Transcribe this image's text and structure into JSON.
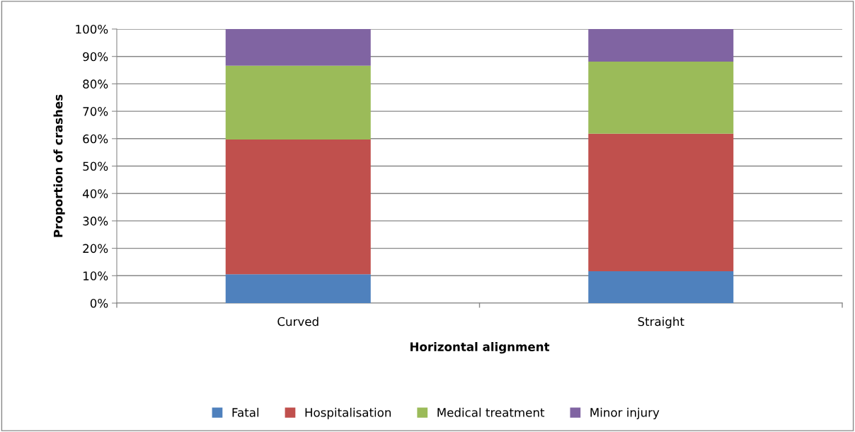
{
  "chart_data": {
    "type": "bar",
    "stacked": true,
    "xlabel": "Horizontal alignment",
    "ylabel": "Proportion of crashes",
    "categories": [
      "Curved",
      "Straight"
    ],
    "series": [
      {
        "name": "Fatal",
        "color": "#4f81bd",
        "values": [
          10.5,
          11.6
        ]
      },
      {
        "name": "Hospitalisation",
        "color": "#c0504d",
        "values": [
          49.2,
          50.2
        ]
      },
      {
        "name": "Medical treatment",
        "color": "#9bbb59",
        "values": [
          26.9,
          26.3
        ]
      },
      {
        "name": "Minor injury",
        "color": "#8064a2",
        "values": [
          13.4,
          11.9
        ]
      }
    ],
    "ylim": [
      0,
      100
    ],
    "yticks": [
      {
        "value": 0,
        "label": "0%"
      },
      {
        "value": 10,
        "label": "10%"
      },
      {
        "value": 20,
        "label": "20%"
      },
      {
        "value": 30,
        "label": "30%"
      },
      {
        "value": 40,
        "label": "40%"
      },
      {
        "value": 50,
        "label": "50%"
      },
      {
        "value": 60,
        "label": "60%"
      },
      {
        "value": 70,
        "label": "70%"
      },
      {
        "value": 80,
        "label": "80%"
      },
      {
        "value": 90,
        "label": "90%"
      },
      {
        "value": 100,
        "label": "100%"
      }
    ],
    "grid": "y",
    "legend": "bottom"
  }
}
